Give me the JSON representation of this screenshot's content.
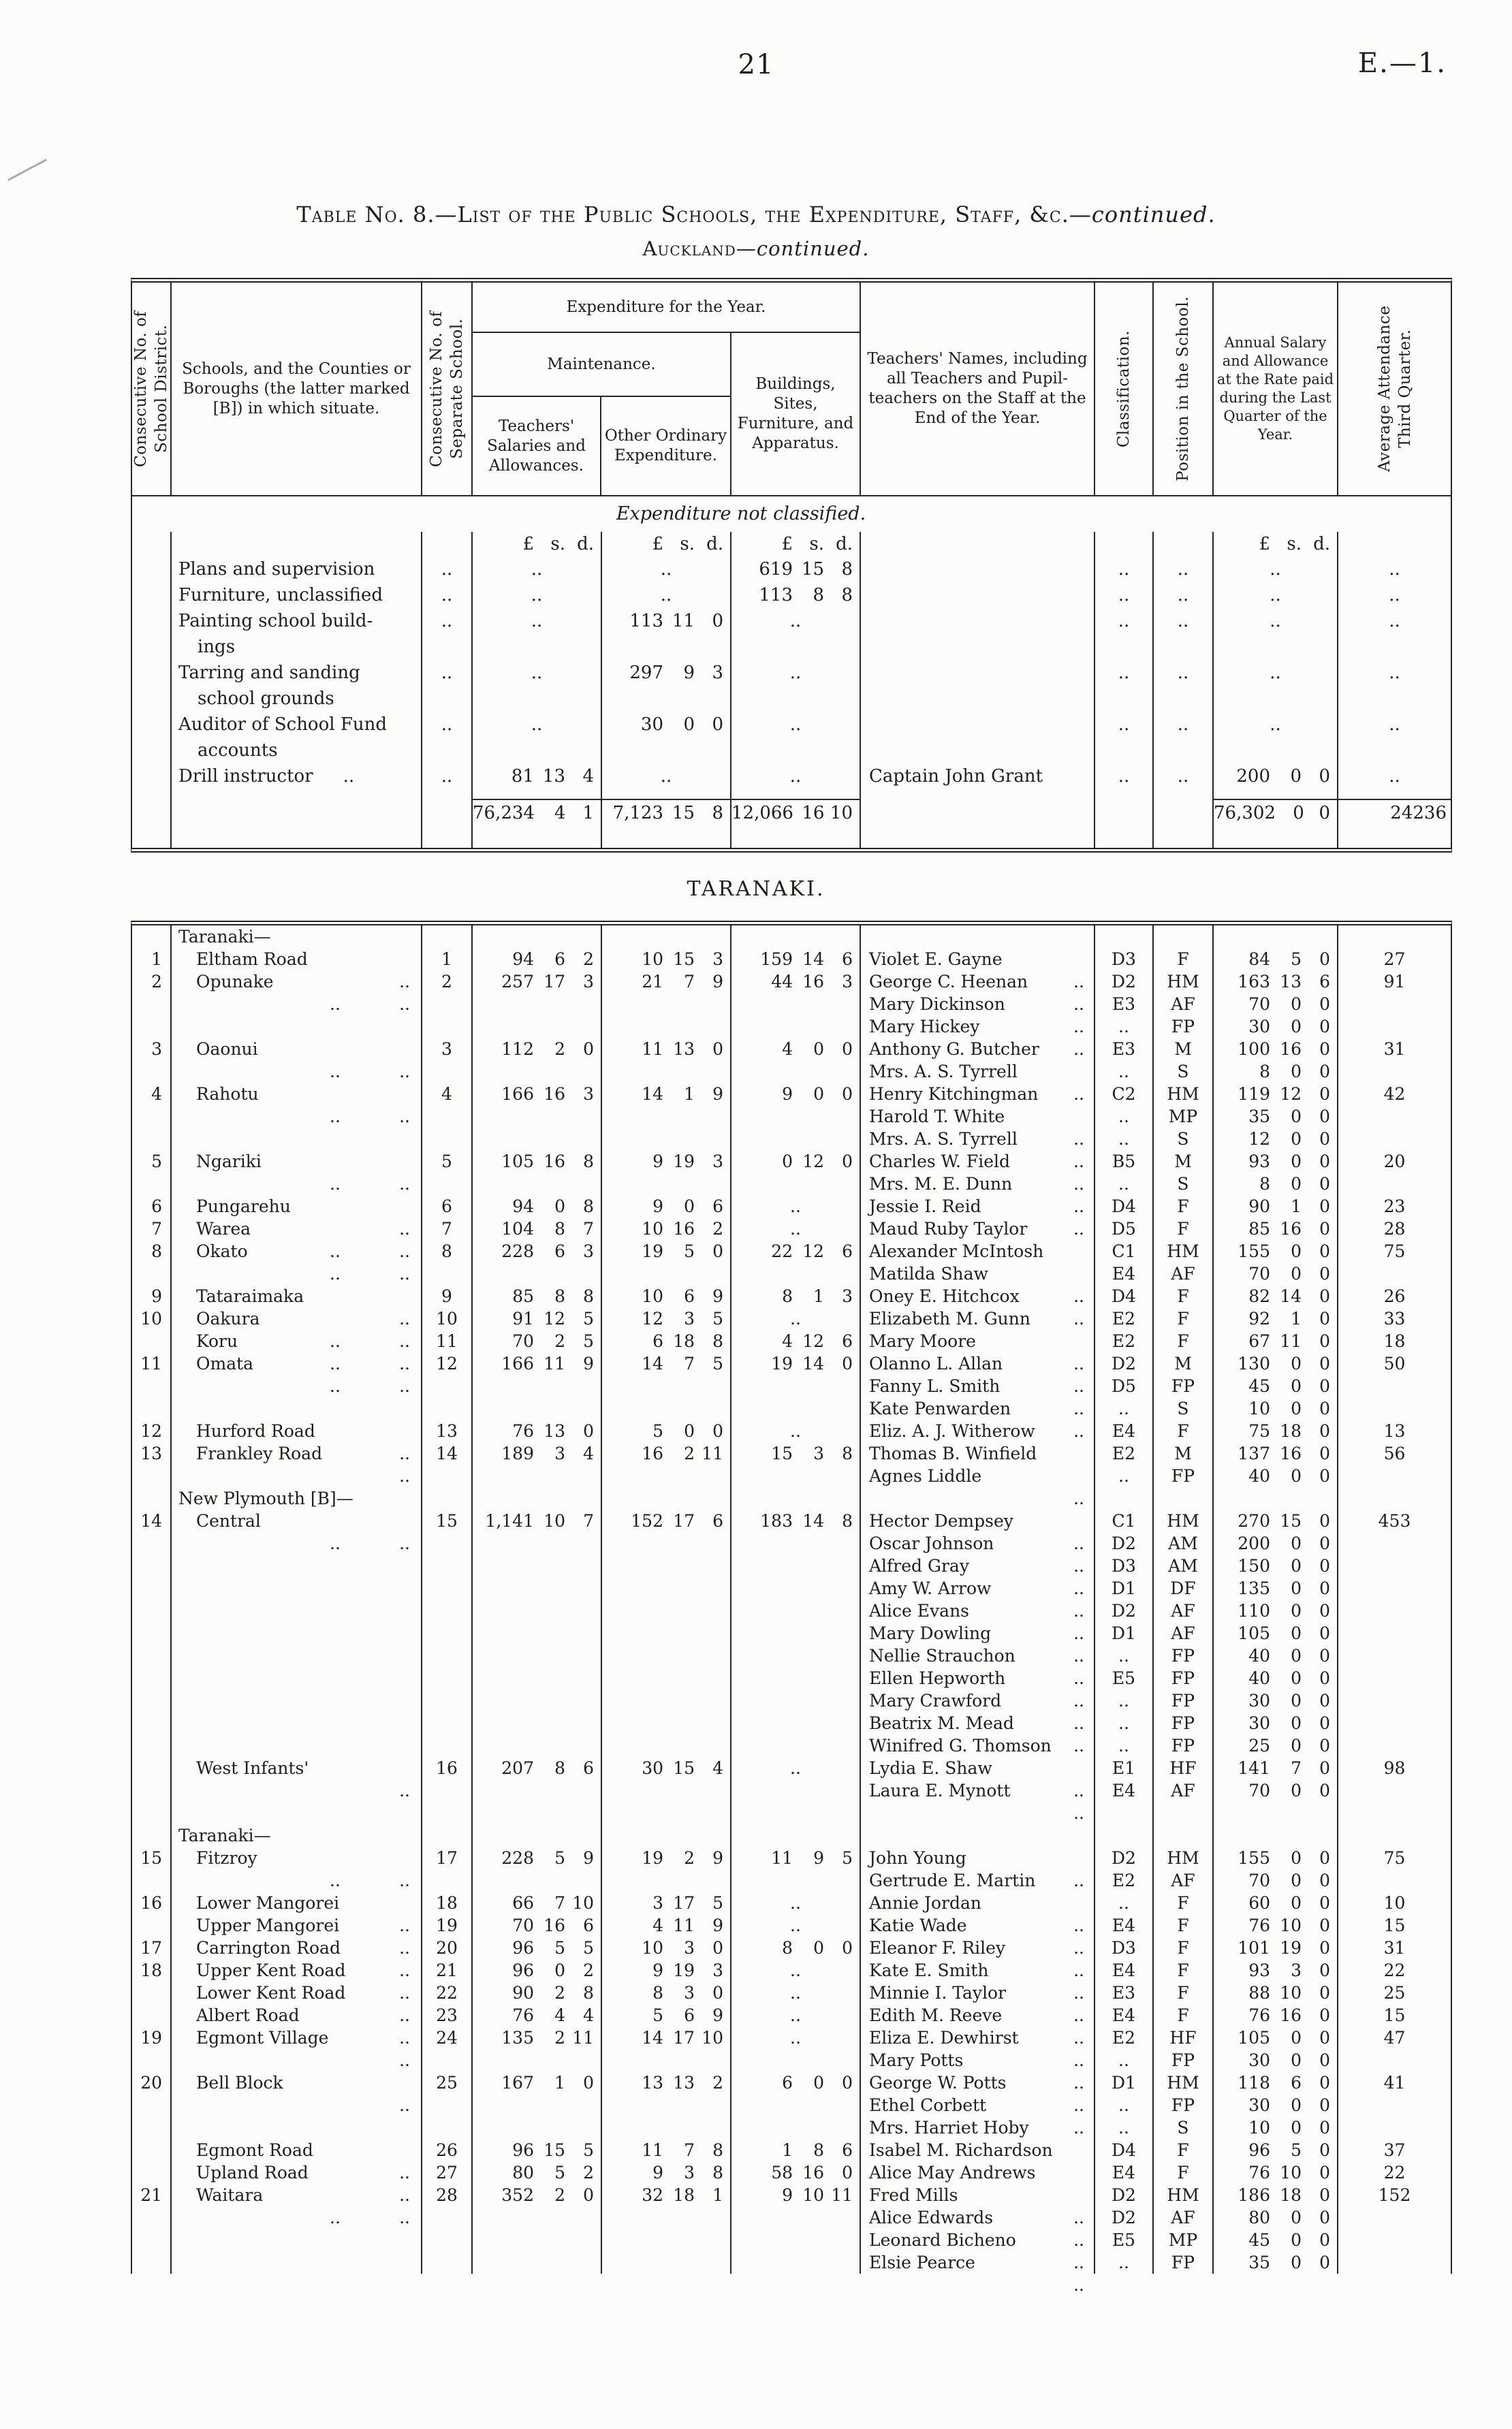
{
  "header": {
    "page_no": "21",
    "report_no": "E.—1."
  },
  "title": {
    "main": "Table No. 8.—List of the Public Schools, the Expenditure, Staff, &c.—",
    "continued": "continued.",
    "subtitle_region": "Auckland—",
    "subtitle_continued": "continued."
  },
  "columns": {
    "district": "Consecutive No. of School District.",
    "schools": "Schools, and the Counties or Boroughs (the latter marked [B]) in which situate.",
    "separate": "Consecutive No. of Separate School.",
    "expenditure": "Expenditure for the Year.",
    "maintenance": "Maintenance.",
    "salaries": "Teachers' Salaries and Allowances.",
    "other": "Other Ordinary Expenditure.",
    "buildings": "Buildings, Sites, Furniture, and Apparatus.",
    "names": "Teachers' Names, including all Teachers and Pupil-teachers on the Staff at the End of the Year.",
    "classification": "Classification.",
    "position": "Position in the School.",
    "salary": "Annual Salary and Allowance at the Rate paid during the Last Quarter of the Year.",
    "attendance": "Average Attendance Third Quarter."
  },
  "currency": {
    "pound": "£",
    "shillings": "s.",
    "pence": "d."
  },
  "auckland": {
    "section_note": "Expenditure not classified.",
    "items": [
      {
        "lines": [
          "Plans and supervision"
        ],
        "no": "..",
        "sal": "..",
        "oth": "..",
        "bld": "619 15 8",
        "t": "",
        "c": "..",
        "p": "..",
        "sy": "..",
        "a": ".."
      },
      {
        "lines": [
          "Furniture, unclassified"
        ],
        "no": "..",
        "sal": "..",
        "oth": "..",
        "bld": "113 8 8",
        "t": "",
        "c": "..",
        "p": "..",
        "sy": "..",
        "a": ".."
      },
      {
        "lines": [
          "Painting school build-",
          "ings"
        ],
        "no": "..",
        "sal": "..",
        "oth": "113 11 0",
        "bld": "..",
        "t": "",
        "c": "..",
        "p": "..",
        "sy": "..",
        "a": ".."
      },
      {
        "lines": [
          "Tarring and sanding",
          "school grounds"
        ],
        "no": "..",
        "sal": "..",
        "oth": "297 9 3",
        "bld": "..",
        "t": "",
        "c": "..",
        "p": "..",
        "sy": "..",
        "a": ".."
      },
      {
        "lines": [
          "Auditor of School Fund",
          "accounts"
        ],
        "no": "..",
        "sal": "..",
        "oth": "30 0 0",
        "bld": "..",
        "t": "",
        "c": "..",
        "p": "..",
        "sy": "..",
        "a": ".."
      },
      {
        "lines": [
          "Drill instructor"
        ],
        "ldots": true,
        "no": "..",
        "sal": "81 13 4",
        "oth": "..",
        "bld": "..",
        "t": "Captain John Grant",
        "c": "..",
        "p": "..",
        "sy": "200 0 0",
        "a": ".."
      }
    ],
    "totals": {
      "sal": "76,234 4 1",
      "oth": "7,123 15 8",
      "bld": "12,066 16 10",
      "sy": "76,302 0 0",
      "a": "24236"
    }
  },
  "taranaki": {
    "heading": "TARANAKI.",
    "rows": [
      {
        "label": "Taranaki—"
      },
      {
        "d": "1",
        "name": "Eltham Road",
        "n": "1",
        "m1": "94 6 2",
        "m2": "10 15 3",
        "m3": "159 14 6",
        "t": "Violet E. Gayne",
        "td": 1,
        "c": "D3",
        "p": "F",
        "sy": "84 5 0",
        "a": "27"
      },
      {
        "d": "2",
        "name": "Opunake",
        "n": "2",
        "m1": "257 17 3",
        "m2": "21 7 9",
        "m3": "44 16 3",
        "t": "George C. Heenan",
        "td": 1,
        "c": "D2",
        "p": "HM",
        "sy": "163 13 6",
        "a": "91"
      },
      {
        "t": "Mary Dickinson",
        "td": 1,
        "c": "E3",
        "p": "AF",
        "sy": "70 0 0"
      },
      {
        "t": "Mary Hickey",
        "td": 1,
        "c": "..",
        "p": "FP",
        "sy": "30 0 0"
      },
      {
        "d": "3",
        "name": "Oaonui",
        "n": "3",
        "m1": "112 2 0",
        "m2": "11 13 0",
        "m3": "4 0 0",
        "t": "Anthony G. Butcher",
        "c": "E3",
        "p": "M",
        "sy": "100 16 0",
        "a": "31"
      },
      {
        "t": "Mrs. A. S. Tyrrell",
        "td": 1,
        "c": "..",
        "p": "S",
        "sy": "8 0 0"
      },
      {
        "d": "4",
        "name": "Rahotu",
        "n": "4",
        "m1": "166 16 3",
        "m2": "14 1 9",
        "m3": "9 0 0",
        "t": "Henry Kitchingman",
        "c": "C2",
        "p": "HM",
        "sy": "119 12 0",
        "a": "42"
      },
      {
        "t": "Harold T. White",
        "td": 1,
        "c": "..",
        "p": "MP",
        "sy": "35 0 0"
      },
      {
        "t": "Mrs. A. S. Tyrrell",
        "td": 1,
        "c": "..",
        "p": "S",
        "sy": "12 0 0"
      },
      {
        "d": "5",
        "name": "Ngariki",
        "n": "5",
        "m1": "105 16 8",
        "m2": "9 19 3",
        "m3": "0 12 0",
        "t": "Charles W. Field",
        "td": 1,
        "c": "B5",
        "p": "M",
        "sy": "93 0 0",
        "a": "20"
      },
      {
        "t": "Mrs. M. E. Dunn",
        "td": 1,
        "c": "..",
        "p": "S",
        "sy": "8 0 0"
      },
      {
        "d": "6",
        "name": "Pungarehu",
        "n": "6",
        "m1": "94 0 8",
        "m2": "9 0 6",
        "m3": "..",
        "t": "Jessie I. Reid",
        "td": 1,
        "c": "D4",
        "p": "F",
        "sy": "90 1 0",
        "a": "23"
      },
      {
        "d": "7",
        "name": "Warea",
        "n": "7",
        "m1": "104 8 7",
        "m2": "10 16 2",
        "m3": "..",
        "t": "Maud Ruby Taylor",
        "c": "D5",
        "p": "F",
        "sy": "85 16 0",
        "a": "28"
      },
      {
        "d": "8",
        "name": "Okato",
        "n": "8",
        "m1": "228 6 3",
        "m2": "19 5 0",
        "m3": "22 12 6",
        "t": "Alexander McIntosh",
        "c": "C1",
        "p": "HM",
        "sy": "155 0 0",
        "a": "75"
      },
      {
        "t": "Matilda Shaw",
        "td": 1,
        "c": "E4",
        "p": "AF",
        "sy": "70 0 0"
      },
      {
        "d": "9",
        "name": "Tataraimaka",
        "n": "9",
        "m1": "85 8 8",
        "m2": "10 6 9",
        "m3": "8 1 3",
        "t": "Oney E. Hitchcox",
        "td": 1,
        "c": "D4",
        "p": "F",
        "sy": "82 14 0",
        "a": "26"
      },
      {
        "d": "10",
        "name": "Oakura",
        "n": "10",
        "m1": "91 12 5",
        "m2": "12 3 5",
        "m3": "..",
        "t": "Elizabeth M. Gunn",
        "c": "E2",
        "p": "F",
        "sy": "92 1 0",
        "a": "33"
      },
      {
        "d": "",
        "name": "Koru",
        "n": "11",
        "m1": "70 2 5",
        "m2": "6 18 8",
        "m3": "4 12 6",
        "t": "Mary Moore",
        "td": 1,
        "c": "E2",
        "p": "F",
        "sy": "67 11 0",
        "a": "18"
      },
      {
        "d": "11",
        "name": "Omata",
        "n": "12",
        "m1": "166 11 9",
        "m2": "14 7 5",
        "m3": "19 14 0",
        "t": "Olanno L. Allan",
        "td": 1,
        "c": "D2",
        "p": "M",
        "sy": "130 0 0",
        "a": "50"
      },
      {
        "t": "Fanny L. Smith",
        "td": 1,
        "c": "D5",
        "p": "FP",
        "sy": "45 0 0"
      },
      {
        "t": "Kate Penwarden",
        "td": 1,
        "c": "..",
        "p": "S",
        "sy": "10 0 0"
      },
      {
        "d": "12",
        "name": "Hurford Road",
        "n": "13",
        "m1": "76 13 0",
        "m2": "5 0 0",
        "m3": "..",
        "t": "Eliz. A. J. Witherow",
        "c": "E4",
        "p": "F",
        "sy": "75 18 0",
        "a": "13"
      },
      {
        "d": "13",
        "name": "Frankley Road",
        "n": "14",
        "m1": "189 3 4",
        "m2": "16 2 11",
        "m3": "15 3 8",
        "t": "Thomas B. Winfield",
        "c": "E2",
        "p": "M",
        "sy": "137 16 0",
        "a": "56"
      },
      {
        "t": "Agnes Liddle",
        "td": 1,
        "c": "..",
        "p": "FP",
        "sy": "40 0 0"
      },
      {
        "label": "New Plymouth [B]—"
      },
      {
        "d": "14",
        "name": "Central",
        "n": "15",
        "m1": "1,141 10 7",
        "m2": "152 17 6",
        "m3": "183 14 8",
        "t": "Hector Dempsey",
        "td": 1,
        "c": "C1",
        "p": "HM",
        "sy": "270 15 0",
        "a": "453"
      },
      {
        "t": "Oscar Johnson",
        "td": 1,
        "c": "D2",
        "p": "AM",
        "sy": "200 0 0"
      },
      {
        "t": "Alfred Gray",
        "td": 1,
        "c": "D3",
        "p": "AM",
        "sy": "150 0 0"
      },
      {
        "t": "Amy W. Arrow",
        "td": 1,
        "c": "D1",
        "p": "DF",
        "sy": "135 0 0"
      },
      {
        "t": "Alice Evans",
        "td": 1,
        "c": "D2",
        "p": "AF",
        "sy": "110 0 0"
      },
      {
        "t": "Mary Dowling",
        "td": 1,
        "c": "D1",
        "p": "AF",
        "sy": "105 0 0"
      },
      {
        "t": "Nellie Strauchon",
        "td": 1,
        "c": "..",
        "p": "FP",
        "sy": "40 0 0"
      },
      {
        "t": "Ellen Hepworth",
        "td": 1,
        "c": "E5",
        "p": "FP",
        "sy": "40 0 0"
      },
      {
        "t": "Mary Crawford",
        "td": 1,
        "c": "..",
        "p": "FP",
        "sy": "30 0 0"
      },
      {
        "t": "Beatrix M. Mead",
        "td": 1,
        "c": "..",
        "p": "FP",
        "sy": "30 0 0"
      },
      {
        "t": "Winifred G. Thomson",
        "c": "..",
        "p": "FP",
        "sy": "25 0 0"
      },
      {
        "d": "",
        "name": "West Infants'",
        "n": "16",
        "m1": "207 8 6",
        "m2": "30 15 4",
        "m3": "..",
        "t": "Lydia E. Shaw",
        "td": 1,
        "c": "E1",
        "p": "HF",
        "sy": "141 7 0",
        "a": "98"
      },
      {
        "t": "Laura E. Mynott",
        "td": 1,
        "c": "E4",
        "p": "AF",
        "sy": "70 0 0"
      },
      {
        "sp": 1
      },
      {
        "label": "Taranaki—"
      },
      {
        "d": "15",
        "name": "Fitzroy",
        "n": "17",
        "m1": "228 5 9",
        "m2": "19 2 9",
        "m3": "11 9 5",
        "t": "John Young",
        "td": 1,
        "c": "D2",
        "p": "HM",
        "sy": "155 0 0",
        "a": "75"
      },
      {
        "t": "Gertrude E. Martin",
        "c": "E2",
        "p": "AF",
        "sy": "70 0 0"
      },
      {
        "d": "16",
        "name": "Lower Mangorei",
        "n": "18",
        "m1": "66 7 10",
        "m2": "3 17 5",
        "m3": "..",
        "t": "Annie Jordan",
        "td": 1,
        "c": "..",
        "p": "F",
        "sy": "60 0 0",
        "a": "10"
      },
      {
        "d": "",
        "name": "Upper Mangorei",
        "n": "19",
        "m1": "70 16 6",
        "m2": "4 11 9",
        "m3": "..",
        "t": "Katie Wade",
        "td": 1,
        "c": "E4",
        "p": "F",
        "sy": "76 10 0",
        "a": "15"
      },
      {
        "d": "17",
        "name": "Carrington Road",
        "n": "20",
        "m1": "96 5 5",
        "m2": "10 3 0",
        "m3": "8 0 0",
        "t": "Eleanor F. Riley",
        "td": 1,
        "c": "D3",
        "p": "F",
        "sy": "101 19 0",
        "a": "31"
      },
      {
        "d": "18",
        "name": "Upper Kent Road",
        "n": "21",
        "m1": "96 0 2",
        "m2": "9 19 3",
        "m3": "..",
        "t": "Kate E. Smith",
        "td": 1,
        "c": "E4",
        "p": "F",
        "sy": "93 3 0",
        "a": "22"
      },
      {
        "d": "",
        "name": "Lower Kent Road",
        "n": "22",
        "m1": "90 2 8",
        "m2": "8 3 0",
        "m3": "..",
        "t": "Minnie I. Taylor",
        "td": 1,
        "c": "E3",
        "p": "F",
        "sy": "88 10 0",
        "a": "25"
      },
      {
        "d": "",
        "name": "Albert Road",
        "n": "23",
        "m1": "76 4 4",
        "m2": "5 6 9",
        "m3": "..",
        "t": "Edith M. Reeve",
        "td": 1,
        "c": "E4",
        "p": "F",
        "sy": "76 16 0",
        "a": "15"
      },
      {
        "d": "19",
        "name": "Egmont Village",
        "n": "24",
        "m1": "135 2 11",
        "m2": "14 17 10",
        "m3": "..",
        "t": "Eliza E. Dewhirst",
        "td": 1,
        "c": "E2",
        "p": "HF",
        "sy": "105 0 0",
        "a": "47"
      },
      {
        "t": "Mary Potts",
        "td": 1,
        "c": "..",
        "p": "FP",
        "sy": "30 0 0"
      },
      {
        "d": "20",
        "name": "Bell Block",
        "n": "25",
        "m1": "167 1 0",
        "m2": "13 13 2",
        "m3": "6 0 0",
        "t": "George W. Potts",
        "td": 1,
        "c": "D1",
        "p": "HM",
        "sy": "118 6 0",
        "a": "41"
      },
      {
        "t": "Ethel Corbett",
        "td": 1,
        "c": "..",
        "p": "FP",
        "sy": "30 0 0"
      },
      {
        "t": "Mrs. Harriet Hoby",
        "c": "..",
        "p": "S",
        "sy": "10 0 0"
      },
      {
        "d": "",
        "name": "Egmont Road",
        "n": "26",
        "m1": "96 15 5",
        "m2": "11 7 8",
        "m3": "1 8 6",
        "t": "Isabel M. Richardson",
        "c": "D4",
        "p": "F",
        "sy": "96 5 0",
        "a": "37"
      },
      {
        "d": "",
        "name": "Upland Road",
        "n": "27",
        "m1": "80 5 2",
        "m2": "9 3 8",
        "m3": "58 16 0",
        "t": "Alice May Andrews",
        "c": "E4",
        "p": "F",
        "sy": "76 10 0",
        "a": "22"
      },
      {
        "d": "21",
        "name": "Waitara",
        "n": "28",
        "m1": "352 2 0",
        "m2": "32 18 1",
        "m3": "9 10 11",
        "t": "Fred Mills",
        "td": 1,
        "c": "D2",
        "p": "HM",
        "sy": "186 18 0",
        "a": "152"
      },
      {
        "t": "Alice Edwards",
        "td": 1,
        "c": "D2",
        "p": "AF",
        "sy": "80 0 0"
      },
      {
        "t": "Leonard Bicheno",
        "td": 1,
        "c": "E5",
        "p": "MP",
        "sy": "45 0 0"
      },
      {
        "t": "Elsie Pearce",
        "td": 1,
        "c": "..",
        "p": "FP",
        "sy": "35 0 0"
      }
    ]
  }
}
